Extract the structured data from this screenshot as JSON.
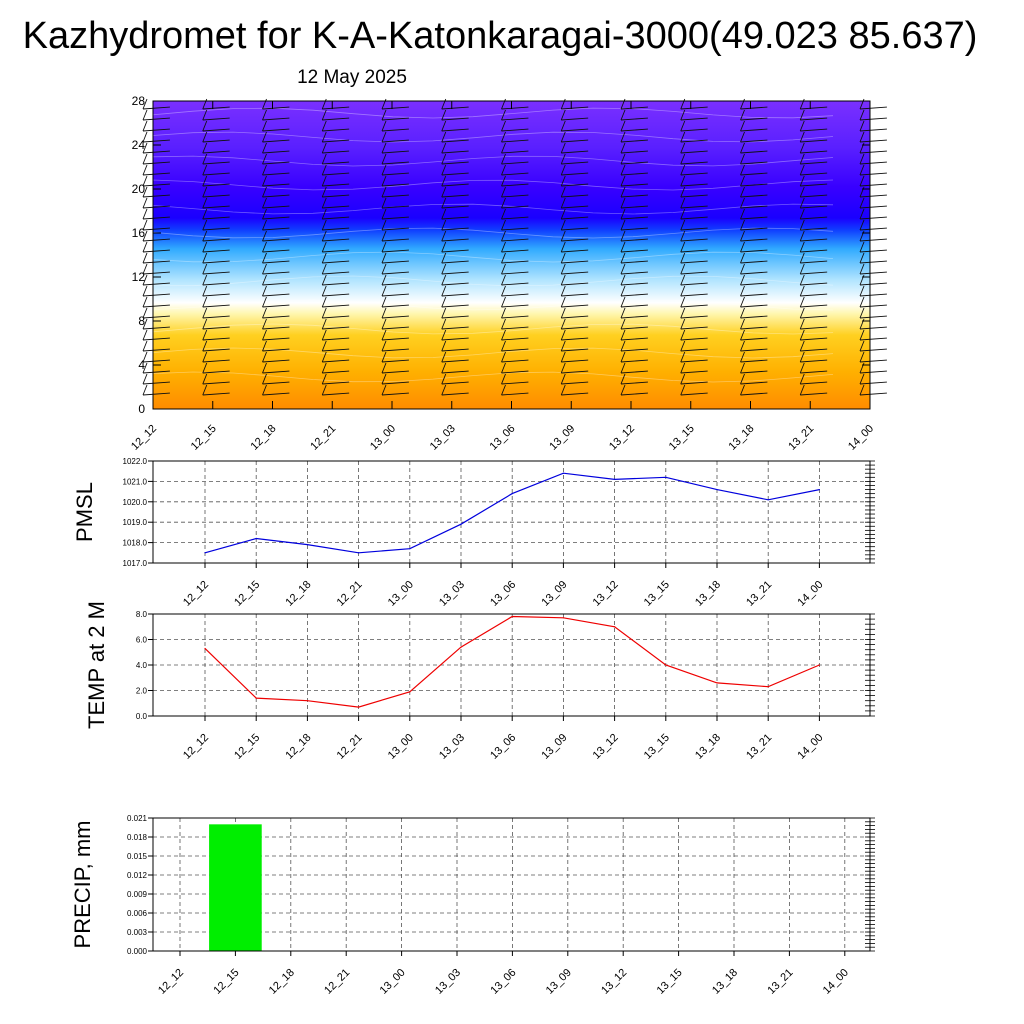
{
  "header": {
    "title": "Kazhydromet for K-A-Katonkaragai-3000(49.023 85.637)",
    "date": "12 May 2025"
  },
  "colors": {
    "pmsl_line": "#0000dd",
    "temp_line": "#ee0000",
    "precip_bar": "#00ee00",
    "grid": "#555555",
    "cross_section_stops": [
      "#ff8c00",
      "#ffb000",
      "#ffd020",
      "#fff7b0",
      "#ffffff",
      "#b0e4ff",
      "#30aaff",
      "#1040ff",
      "#1a00ff",
      "#3800ff",
      "#5a20ff",
      "#7a30ff"
    ]
  },
  "chart_data": [
    {
      "id": "cross-section",
      "type": "heatmap",
      "x_categories": [
        "12_12",
        "12_15",
        "12_18",
        "12_21",
        "13_00",
        "13_03",
        "13_06",
        "13_09",
        "13_12",
        "13_15",
        "13_18",
        "13_21",
        "14_00"
      ],
      "y_ticks": [
        "0",
        "4",
        "8",
        "12",
        "16",
        "20",
        "24",
        "28"
      ],
      "ylim": [
        0,
        28
      ],
      "grid": false,
      "overlay": "wind-barbs"
    },
    {
      "id": "pmsl",
      "type": "line",
      "ylabel": "PMSL",
      "categories": [
        "12_12",
        "12_15",
        "12_18",
        "12_21",
        "13_00",
        "13_03",
        "13_06",
        "13_09",
        "13_12",
        "13_15",
        "13_18",
        "13_21",
        "14_00"
      ],
      "values": [
        1017.5,
        1018.2,
        1017.9,
        1017.5,
        1017.7,
        1018.9,
        1020.4,
        1021.4,
        1021.1,
        1021.2,
        1020.6,
        1020.1,
        1020.6
      ],
      "ylim": [
        1017.0,
        1022.0
      ],
      "y_ticks": [
        "1017.0",
        "1018.0",
        "1019.0",
        "1020.0",
        "1021.0",
        "1022.0"
      ],
      "grid": true
    },
    {
      "id": "temp",
      "type": "line",
      "ylabel": "TEMP at 2 M",
      "categories": [
        "12_12",
        "12_15",
        "12_18",
        "12_21",
        "13_00",
        "13_03",
        "13_06",
        "13_09",
        "13_12",
        "13_15",
        "13_18",
        "13_21",
        "14_00"
      ],
      "values": [
        5.3,
        1.4,
        1.2,
        0.7,
        1.9,
        5.4,
        7.8,
        7.7,
        7.0,
        4.0,
        2.6,
        2.3,
        4.0
      ],
      "ylim": [
        0.0,
        8.0
      ],
      "y_ticks": [
        "0.0",
        "2.0",
        "4.0",
        "6.0",
        "8.0"
      ],
      "grid": true
    },
    {
      "id": "precip",
      "type": "bar",
      "ylabel": "PRECIP, mm",
      "categories": [
        "12_12",
        "12_15",
        "12_18",
        "12_21",
        "13_00",
        "13_03",
        "13_06",
        "13_09",
        "13_12",
        "13_15",
        "13_18",
        "13_21",
        "14_00"
      ],
      "values": [
        0,
        0.02,
        0,
        0,
        0,
        0,
        0,
        0,
        0,
        0,
        0,
        0,
        0
      ],
      "ylim": [
        0,
        0.021
      ],
      "y_ticks": [
        "0.000",
        "0.003",
        "0.006",
        "0.009",
        "0.012",
        "0.015",
        "0.018",
        "0.021"
      ],
      "grid": true
    }
  ]
}
